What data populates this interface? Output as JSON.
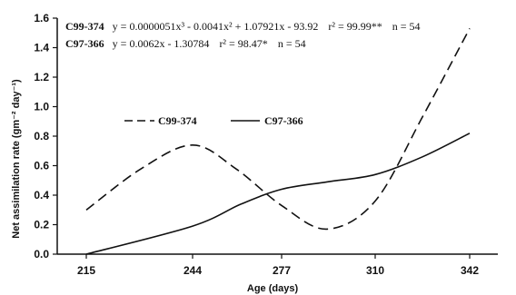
{
  "chart_data": {
    "type": "line",
    "categories": [
      "215",
      "244",
      "277",
      "310",
      "342"
    ],
    "xlabel": "Age (days)",
    "ylabel": "Net assimilation rate (gm⁻² day⁻¹)",
    "ylim": [
      0,
      1.6
    ],
    "yticks": [
      "0.0",
      "0.2",
      "0.4",
      "0.6",
      "0.8",
      "1.0",
      "1.2",
      "1.4",
      "1.6"
    ],
    "grid": false,
    "legend_position": "center-left",
    "series": [
      {
        "name": "C99-374",
        "style": "dashed",
        "color": "#111111",
        "x": [
          215,
          230,
          244,
          260,
          277,
          293,
          310,
          326,
          342
        ],
        "values": [
          0.3,
          0.58,
          0.74,
          0.58,
          0.33,
          0.17,
          0.36,
          0.93,
          1.53
        ]
      },
      {
        "name": "C97-366",
        "style": "solid",
        "color": "#111111",
        "x": [
          215,
          244,
          262,
          277,
          293,
          310,
          326,
          342
        ],
        "values": [
          0.0,
          0.19,
          0.34,
          0.44,
          0.49,
          0.54,
          0.66,
          0.82
        ]
      }
    ],
    "annotations": [
      {
        "label": "C99-374",
        "equation": "y = 0.0000051x³ - 0.0041x² + 1.07921x - 93.92",
        "r2": "r² = 99.99**",
        "n": "n = 54"
      },
      {
        "label": "C97-366",
        "equation": "y = 0.0062x - 1.30784",
        "r2": "r² = 98.47*",
        "n": "n = 54"
      }
    ]
  }
}
